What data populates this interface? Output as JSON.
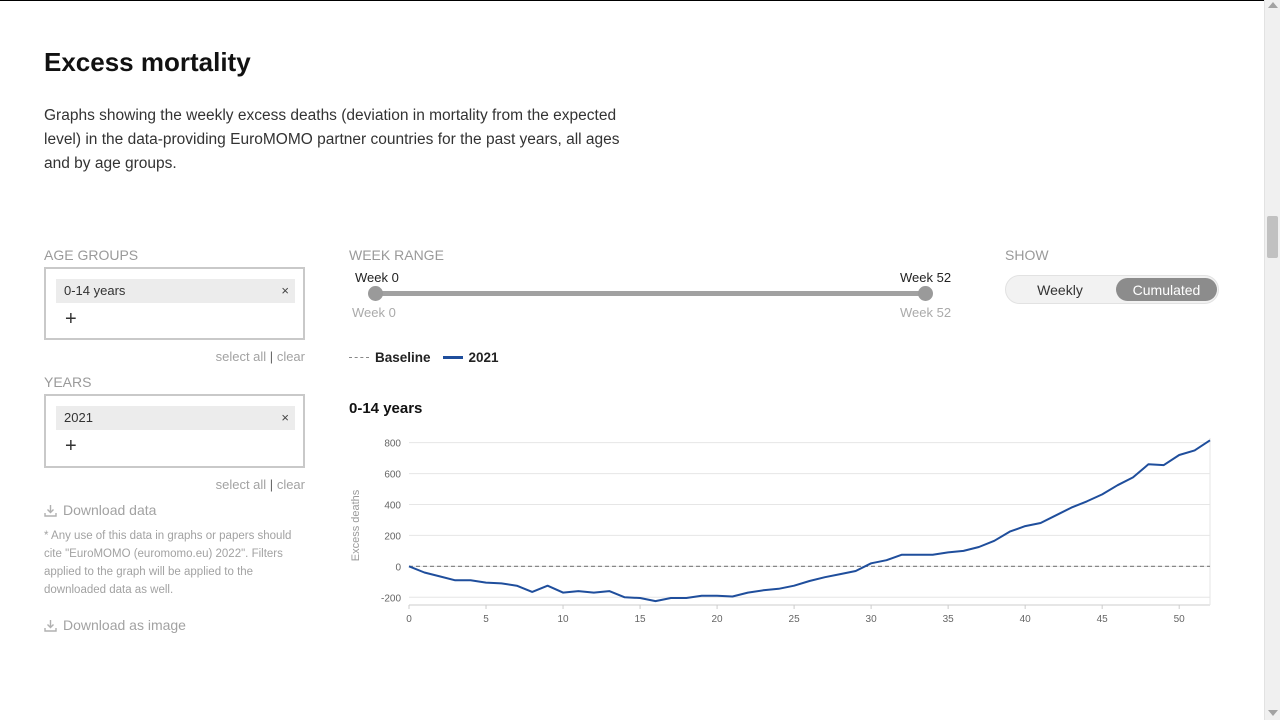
{
  "page": {
    "title": "Excess mortality",
    "intro": "Graphs showing the weekly excess deaths (deviation in mortality from the expected level) in the data-providing EuroMOMO partner countries for the past years, all ages and by age groups."
  },
  "filters": {
    "age_groups": {
      "label": "AGE GROUPS",
      "selected": "0-14 years",
      "remove_symbol": "×",
      "add_symbol": "+",
      "select_all": "select all",
      "separator": "|",
      "clear": "clear"
    },
    "years": {
      "label": "YEARS",
      "selected": "2021",
      "remove_symbol": "×",
      "add_symbol": "+",
      "select_all": "select all",
      "separator": "|",
      "clear": "clear"
    },
    "download_data": "Download data",
    "citation_note": "* Any use of this data in graphs or papers should cite \"EuroMOMO (euromomo.eu) 2022\". Filters applied to the graph will be applied to the downloaded data as well.",
    "download_image": "Download as image"
  },
  "week_range": {
    "label": "WEEK RANGE",
    "start_label": "Week 0",
    "end_label": "Week 52",
    "min_label": "Week 0",
    "max_label": "Week 52",
    "start_value": 0,
    "end_value": 52
  },
  "show": {
    "label": "SHOW",
    "options": [
      "Weekly",
      "Cumulated"
    ],
    "selected": "Cumulated"
  },
  "legend": {
    "baseline": "Baseline",
    "series": "2021"
  },
  "colors": {
    "series": "#1f4e9c",
    "baseline": "#888888"
  },
  "chart_data": {
    "type": "line",
    "title": "0-14 years",
    "ylabel": "Excess deaths",
    "xlabel": "",
    "xlim": [
      0,
      52
    ],
    "ylim": [
      -250,
      830
    ],
    "x_ticks": [
      0,
      5,
      10,
      15,
      20,
      25,
      30,
      35,
      40,
      45,
      50
    ],
    "y_ticks": [
      -200,
      0,
      200,
      400,
      600,
      800
    ],
    "grid": true,
    "baseline": 0,
    "series": [
      {
        "name": "2021",
        "x": [
          0,
          1,
          2,
          3,
          4,
          5,
          6,
          7,
          8,
          9,
          10,
          11,
          12,
          13,
          14,
          15,
          16,
          17,
          18,
          19,
          20,
          21,
          22,
          23,
          24,
          25,
          26,
          27,
          28,
          29,
          30,
          31,
          32,
          33,
          34,
          35,
          36,
          37,
          38,
          39,
          40,
          41,
          42,
          43,
          44,
          45,
          46,
          47,
          48,
          49,
          50,
          51,
          52
        ],
        "y": [
          0,
          -40,
          -65,
          -90,
          -90,
          -105,
          -110,
          -125,
          -165,
          -125,
          -170,
          -160,
          -170,
          -160,
          -200,
          -205,
          -225,
          -205,
          -205,
          -190,
          -190,
          -195,
          -170,
          -155,
          -145,
          -125,
          -95,
          -70,
          -50,
          -30,
          20,
          40,
          75,
          75,
          75,
          90,
          100,
          125,
          165,
          225,
          260,
          280,
          330,
          380,
          420,
          465,
          525,
          575,
          660,
          655,
          720,
          750,
          815
        ]
      }
    ]
  }
}
